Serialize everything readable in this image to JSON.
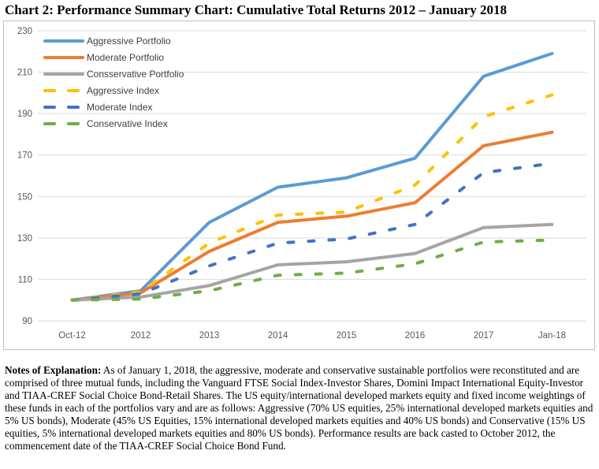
{
  "title": "Chart 2:  Performance Summary Chart:  Cumulative Total Returns 2012 – January 2018",
  "chart_data": {
    "type": "line",
    "categories": [
      "Oct-12",
      "2012",
      "2013",
      "2014",
      "2015",
      "2016",
      "2017",
      "Jan-18"
    ],
    "ylim": [
      90,
      230
    ],
    "yticks": [
      90,
      110,
      130,
      150,
      170,
      190,
      210,
      230
    ],
    "grid": true,
    "legend_position": "top-left",
    "series": [
      {
        "name": "Aggressive Portfolio",
        "color": "#5b9bd5",
        "style": "solid",
        "values": [
          100,
          104.5,
          137.5,
          154.5,
          159,
          168.5,
          208,
          219
        ]
      },
      {
        "name": "Moderate Portfolio",
        "color": "#ed7d31",
        "style": "solid",
        "values": [
          100,
          103.5,
          123.5,
          137.5,
          140.5,
          147,
          174.5,
          181
        ]
      },
      {
        "name": "Consservative Portfolio",
        "color": "#a5a5a5",
        "style": "solid",
        "values": [
          100,
          101.5,
          107,
          117,
          118.5,
          122.5,
          135,
          136.5
        ]
      },
      {
        "name": "Aggressive Index",
        "color": "#ffc000",
        "style": "dashed",
        "values": [
          100,
          104,
          127.5,
          141,
          142.5,
          155.5,
          188.5,
          199
        ]
      },
      {
        "name": "Moderate Index",
        "color": "#4472c4",
        "style": "dashed",
        "values": [
          100,
          103,
          116.5,
          127.5,
          129.5,
          136.5,
          161.5,
          166
        ]
      },
      {
        "name": "Conservative Index",
        "color": "#70ad47",
        "style": "dashed",
        "values": [
          100,
          100.5,
          104.5,
          112,
          113,
          117.5,
          128,
          129
        ]
      }
    ]
  },
  "notes": {
    "label": "Notes of Explanation:",
    "text": "  As of January 1, 2018, the aggressive, moderate and conservative sustainable portfolios were reconstituted and are comprised of three mutual funds, including the Vanguard FTSE Social Index-Investor Shares, Domini Impact International Equity-Investor and TIAA-CREF Social Choice Bond-Retail Shares. The US equity/international developed markets equity and fixed income weightings of these funds in each of the portfolios vary and are as follows:  Aggressive (70% US equities, 25% international developed markets equities and 5% US bonds), Moderate (45% US Equities, 15% international developed markets equities and 40% US bonds) and Conservative (15% US equities, 5% international developed markets equities and 80% US bonds).  Performance results are back casted to October 2012, the commencement date of the TIAA-CREF Social Choice Bond Fund."
  }
}
